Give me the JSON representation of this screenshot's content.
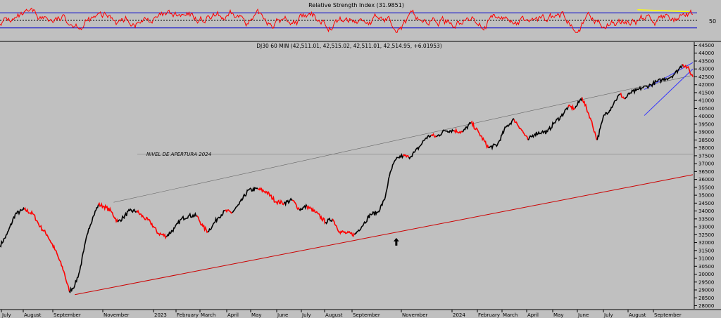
{
  "rsi_panel": {
    "title": "Relative Strength Index (31.9851)",
    "level_label": "50",
    "scale": [
      0,
      100
    ],
    "overbought": 70,
    "midline": 50,
    "oversold": 30,
    "line_color": "#ff0000",
    "band_color": "#0000cc",
    "divergence_color": "#ffff00"
  },
  "price_panel": {
    "title": "DJ30 60 MIN (42,511.01, 42,515.02, 42,511.01, 42,514.95, +6.01953)",
    "opening_level_label": "NIVEL DE APERTURA 2024",
    "opening_level": 37600,
    "annotation_arrow": "up-arrow",
    "y_ticks": [
      "44500",
      "44000",
      "43500",
      "43000",
      "42500",
      "42000",
      "41500",
      "41000",
      "40500",
      "40000",
      "39500",
      "39000",
      "38500",
      "38000",
      "37500",
      "37000",
      "36500",
      "36000",
      "35500",
      "35000",
      "34500",
      "34000",
      "33500",
      "33000",
      "32500",
      "32000",
      "31500",
      "31000",
      "30500",
      "30000",
      "29500",
      "29000",
      "28500",
      "28000"
    ],
    "x_labels": [
      "July",
      "August",
      "September",
      "November",
      "2023",
      "February",
      "March",
      "April",
      "May",
      "June",
      "July",
      "August",
      "September",
      "November",
      "2024",
      "February",
      "March",
      "April",
      "May",
      "June",
      "July",
      "August",
      "September"
    ]
  },
  "chart_data": {
    "type": "line",
    "title": "DJ30 60 MIN (42,511.01, 42,515.02, 42,511.01, 42,514.95, +6.01953)",
    "xlabel": "",
    "ylabel": "",
    "ylim": [
      27800,
      44700
    ],
    "grid": false,
    "colors": {
      "up_segment": "#000000",
      "down_segment": "#ff0000",
      "support_line": "#cc0000",
      "resistance_line": "#666666",
      "channel": "#3333ff"
    },
    "series": [
      {
        "values_t": [
          0.0,
          0.01,
          0.022,
          0.035,
          0.048,
          0.058,
          0.068,
          0.08,
          0.092,
          0.1,
          0.108,
          0.115,
          0.121,
          0.128,
          0.135,
          0.142,
          0.15,
          0.16,
          0.17,
          0.178,
          0.187,
          0.197,
          0.207,
          0.217,
          0.228,
          0.24,
          0.252,
          0.262,
          0.272,
          0.284,
          0.293,
          0.3,
          0.307,
          0.315,
          0.325,
          0.335,
          0.345,
          0.358,
          0.372,
          0.385,
          0.398,
          0.41,
          0.422,
          0.432,
          0.443,
          0.456,
          0.47,
          0.48,
          0.49,
          0.5,
          0.512,
          0.525,
          0.535,
          0.545,
          0.555,
          0.562,
          0.568,
          0.575,
          0.582,
          0.59,
          0.598,
          0.606,
          0.614,
          0.622,
          0.63,
          0.642,
          0.655,
          0.668,
          0.68,
          0.692,
          0.705,
          0.718,
          0.73,
          0.742,
          0.752,
          0.762,
          0.772,
          0.782,
          0.79,
          0.8,
          0.81,
          0.82,
          0.83,
          0.84,
          0.852,
          0.862,
          0.872,
          0.88,
          0.888,
          0.895,
          0.902,
          0.91,
          0.918,
          0.926,
          0.934,
          0.94,
          0.948,
          0.955,
          0.962,
          0.968,
          0.974,
          0.98,
          0.985,
          0.992,
          1.0
        ],
        "values": [
          31800,
          32500,
          33800,
          34100,
          33800,
          33000,
          32500,
          31500,
          30200,
          28900,
          29300,
          30200,
          31500,
          32900,
          33700,
          34400,
          34300,
          34000,
          33300,
          33600,
          34000,
          34000,
          33600,
          33300,
          32600,
          32400,
          32900,
          33500,
          33700,
          33700,
          33000,
          32700,
          33100,
          33600,
          34000,
          33900,
          34400,
          35300,
          35400,
          35200,
          34600,
          34500,
          34700,
          34100,
          34300,
          33900,
          33300,
          33500,
          32700,
          32600,
          32500,
          33200,
          33800,
          33900,
          34700,
          36200,
          37000,
          37400,
          37500,
          37400,
          37700,
          38100,
          38600,
          38800,
          38700,
          39100,
          39100,
          39000,
          39600,
          38900,
          38000,
          38200,
          39300,
          39800,
          39200,
          38500,
          38900,
          39000,
          39000,
          39600,
          40000,
          40600,
          40500,
          41200,
          39900,
          38500,
          40100,
          40400,
          41000,
          41400,
          41100,
          41500,
          41600,
          41800,
          41900,
          42000,
          42200,
          42300,
          42400,
          42500,
          42700,
          43000,
          43300,
          43100,
          42500
        ]
      }
    ],
    "trendlines": {
      "support": {
        "from": {
          "t": 0.108,
          "value": 28700
        },
        "to": {
          "t": 1.0,
          "value": 36300
        }
      },
      "resistance": {
        "from": {
          "t": 0.164,
          "value": 34550
        },
        "to": {
          "t": 1.0,
          "value": 42600
        }
      },
      "channel_upper": {
        "from": {
          "t": 0.93,
          "value": 41700
        },
        "to": {
          "t": 1.0,
          "value": 43400
        }
      },
      "channel_lower": {
        "from": {
          "t": 0.93,
          "value": 40050
        },
        "to": {
          "t": 1.0,
          "value": 43000
        }
      }
    },
    "arrow_annotation": {
      "t": 0.572,
      "value": 32300
    },
    "rsi_series": {
      "ylim": [
        0,
        100
      ],
      "divergence": {
        "from": {
          "t": 0.92,
          "value": 78
        },
        "to": {
          "t": 0.995,
          "value": 73
        }
      }
    }
  }
}
